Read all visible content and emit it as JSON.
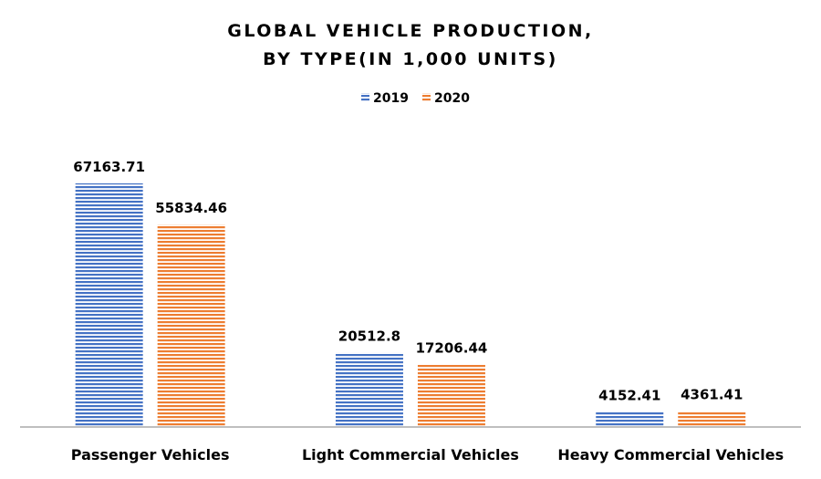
{
  "chart_data": {
    "type": "bar",
    "title_lines": [
      "GLOBAL VEHICLE PRODUCTION,",
      "BY TYPE(IN 1,000 UNITS)"
    ],
    "categories": [
      "Passenger Vehicles",
      "Light Commercial Vehicles",
      "Heavy Commercial Vehicles"
    ],
    "series": [
      {
        "name": "2019",
        "color": "#4472C4",
        "values": [
          67163.71,
          20512.8,
          4152.41
        ],
        "labels": [
          "67163.71",
          "20512.8",
          "4152.41"
        ]
      },
      {
        "name": "2020",
        "color": "#ED7D31",
        "values": [
          55834.46,
          17206.44,
          4361.41
        ],
        "labels": [
          "55834.46",
          "17206.44",
          "4361.41"
        ]
      }
    ],
    "xlabel": "",
    "ylabel": "",
    "ylim": [
      0,
      67163.71
    ],
    "grid": false,
    "legend": "top-center",
    "axis_color": "#BFBFBF"
  }
}
